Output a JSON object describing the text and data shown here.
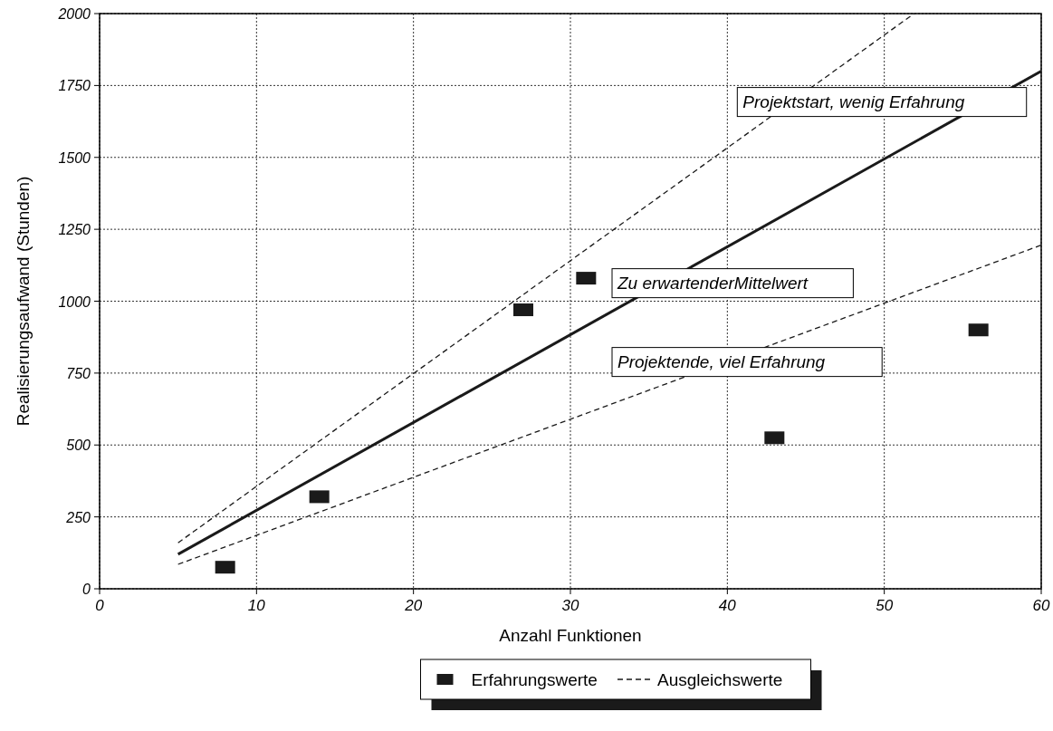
{
  "chart_data": {
    "type": "scatter",
    "xlabel": "Anzahl Funktionen",
    "ylabel": "Realisierungsaufwand (Stunden)",
    "xlim": [
      0,
      60
    ],
    "xticks": [
      0,
      10,
      20,
      30,
      40,
      50,
      60
    ],
    "ylim": [
      0,
      2000
    ],
    "yticks": [
      0,
      250,
      500,
      750,
      1000,
      1250,
      1500,
      1750,
      2000
    ],
    "grid": true,
    "legend": "bottom",
    "series": [
      {
        "name": "Erfahrungswerte",
        "marker": "square",
        "color": "#1a1a1a",
        "x": [
          8,
          14,
          27,
          31,
          43,
          56
        ],
        "values": [
          75,
          320,
          970,
          1080,
          525,
          900
        ]
      },
      {
        "name": "Ausgleichswerte",
        "type": "line",
        "marker": "none",
        "line_style": "dashed",
        "color": "#1a1a1a",
        "x": [
          5,
          51.9
        ],
        "values": [
          160,
          2000
        ]
      },
      {
        "type": "line",
        "marker": "none",
        "line_style": "dashed",
        "color": "#1a1a1a",
        "x": [
          5,
          60
        ],
        "values": [
          85,
          1195
        ]
      },
      {
        "type": "line",
        "marker": "none",
        "line_style": "solid",
        "color": "#1a1a1a",
        "x": [
          5,
          60
        ],
        "values": [
          120,
          1800
        ]
      }
    ],
    "annotations": [
      "Projektstart, wenig Erfahrung",
      "Zu erwartenderMittelwert",
      "Projektende, viel Erfahrung"
    ]
  }
}
